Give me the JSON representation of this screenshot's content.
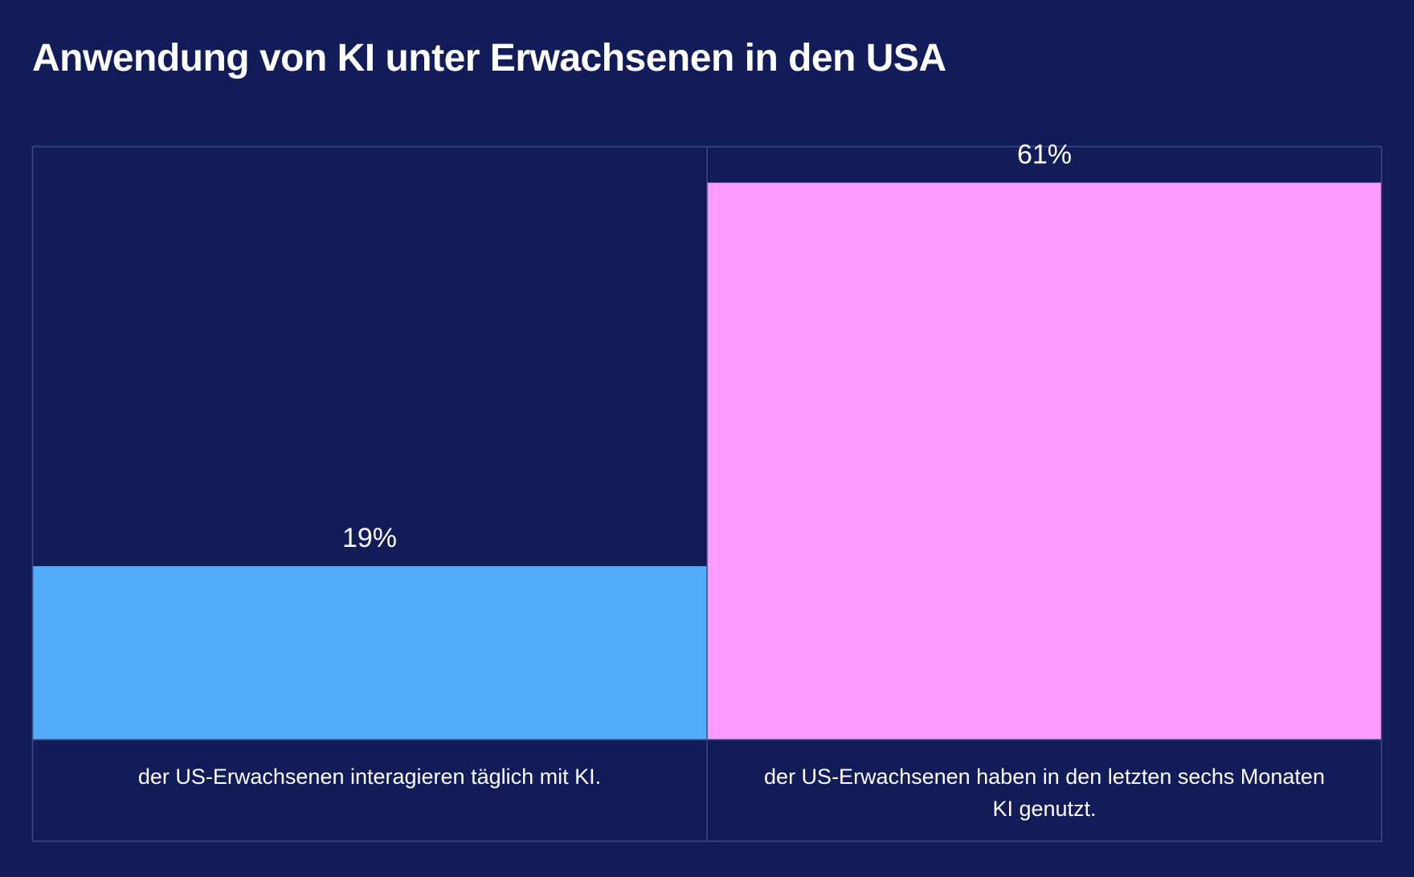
{
  "chart_data": {
    "type": "bar",
    "title": "Anwendung von KI unter Erwachsenen in den USA",
    "xlabel": "",
    "ylabel": "",
    "ylim": [
      0,
      65
    ],
    "categories": [
      "der US-Erwachsenen interagieren täglich mit KI.",
      "der US-Erwachsenen haben in den letzten sechs Monaten KI genutzt."
    ],
    "values": [
      19,
      61
    ],
    "value_labels": [
      "19%",
      "61%"
    ],
    "colors": [
      "#53abfc",
      "#ff9afe"
    ],
    "grid": false,
    "legend": "none"
  },
  "colors": {
    "background": "#121c58",
    "frame": "#3d4a84",
    "text": "#ffffff"
  }
}
